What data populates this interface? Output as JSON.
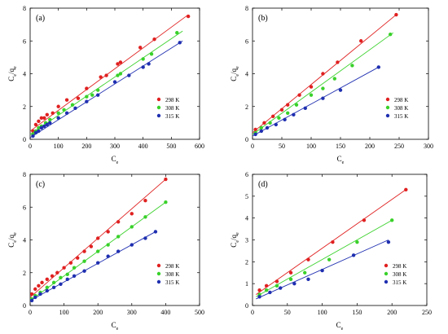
{
  "colors": {
    "298": "#e02020",
    "308": "#39d12a",
    "315": "#1f2fb0"
  },
  "chart_data": [
    {
      "type": "scatter",
      "panel_label": "(a)",
      "xlabel": "C",
      "xlabel_sub": "e",
      "ylabel": "C",
      "ylabel_sub": "e",
      "ylabel_mid": "/q",
      "ylabel_sub2": "e",
      "xlim": [
        0,
        600
      ],
      "ylim": [
        0,
        8
      ],
      "xticks": [
        0,
        100,
        200,
        300,
        400,
        500,
        600
      ],
      "yticks": [
        0,
        2,
        4,
        6,
        8
      ],
      "legend_position": "bottom-right",
      "series": [
        {
          "name": "298 K",
          "color_key": "298",
          "x": [
            10,
            20,
            30,
            40,
            50,
            60,
            80,
            100,
            130,
            170,
            200,
            250,
            270,
            310,
            320,
            390,
            440,
            560
          ],
          "y": [
            0.5,
            0.9,
            1.1,
            1.3,
            1.3,
            1.5,
            1.6,
            2.0,
            2.4,
            2.5,
            3.1,
            3.8,
            3.9,
            4.6,
            4.7,
            5.6,
            6.1,
            7.5
          ],
          "fit": [
            [
              0,
              0.5
            ],
            [
              560,
              7.6
            ]
          ]
        },
        {
          "name": "308 K",
          "color_key": "308",
          "x": [
            10,
            20,
            30,
            40,
            55,
            70,
            100,
            120,
            150,
            200,
            220,
            240,
            310,
            320,
            400,
            430,
            520
          ],
          "y": [
            0.3,
            0.5,
            0.7,
            0.8,
            1.0,
            1.2,
            1.6,
            1.8,
            2.1,
            2.6,
            2.7,
            3.0,
            3.9,
            4.0,
            4.9,
            5.2,
            6.5
          ],
          "fit": [
            [
              0,
              0.3
            ],
            [
              540,
              6.6
            ]
          ]
        },
        {
          "name": "315 K",
          "color_key": "315",
          "x": [
            10,
            20,
            30,
            40,
            50,
            60,
            70,
            100,
            130,
            160,
            200,
            240,
            300,
            350,
            400,
            420,
            530
          ],
          "y": [
            0.2,
            0.4,
            0.5,
            0.7,
            0.8,
            0.9,
            1.0,
            1.3,
            1.6,
            1.9,
            2.3,
            2.7,
            3.5,
            3.9,
            4.4,
            4.6,
            5.9
          ],
          "fit": [
            [
              0,
              0.1
            ],
            [
              540,
              6.0
            ]
          ]
        }
      ]
    },
    {
      "type": "scatter",
      "panel_label": "(b)",
      "xlabel": "C",
      "xlabel_sub": "e",
      "ylabel": "C",
      "ylabel_sub": "e",
      "ylabel_mid": "/q",
      "ylabel_sub2": "e",
      "xlim": [
        0,
        300
      ],
      "ylim": [
        0,
        8
      ],
      "xticks": [
        0,
        50,
        100,
        150,
        200,
        250,
        300
      ],
      "yticks": [
        0,
        2,
        4,
        6,
        8
      ],
      "legend_position": "bottom-right",
      "series": [
        {
          "name": "298 K",
          "color_key": "298",
          "x": [
            5,
            20,
            35,
            50,
            60,
            80,
            100,
            120,
            145,
            185,
            245
          ],
          "y": [
            0.6,
            1.0,
            1.4,
            1.8,
            2.1,
            2.7,
            3.2,
            4.0,
            4.7,
            6.0,
            7.6
          ],
          "fit": [
            [
              0,
              0.4
            ],
            [
              245,
              7.6
            ]
          ]
        },
        {
          "name": "308 K",
          "color_key": "308",
          "x": [
            5,
            15,
            30,
            45,
            60,
            75,
            100,
            120,
            140,
            170,
            235
          ],
          "y": [
            0.4,
            0.7,
            1.0,
            1.3,
            1.6,
            2.1,
            2.7,
            3.1,
            3.7,
            4.5,
            6.4
          ],
          "fit": [
            [
              0,
              0.3
            ],
            [
              240,
              6.5
            ]
          ]
        },
        {
          "name": "315 K",
          "color_key": "315",
          "x": [
            5,
            15,
            25,
            40,
            55,
            70,
            90,
            120,
            150,
            215
          ],
          "y": [
            0.3,
            0.5,
            0.7,
            0.9,
            1.2,
            1.5,
            1.9,
            2.5,
            3.0,
            4.4
          ],
          "fit": [
            [
              0,
              0.2
            ],
            [
              215,
              4.4
            ]
          ]
        }
      ]
    },
    {
      "type": "scatter",
      "panel_label": "(c)",
      "xlabel": "C",
      "xlabel_sub": "e",
      "ylabel": "C",
      "ylabel_sub": "e",
      "ylabel_mid": "/q",
      "ylabel_sub2": "e",
      "xlim": [
        0,
        500
      ],
      "ylim": [
        0,
        8
      ],
      "xticks": [
        0,
        100,
        200,
        300,
        400,
        500
      ],
      "yticks": [
        0,
        2,
        4,
        6,
        8
      ],
      "legend_position": "bottom-right",
      "series": [
        {
          "name": "298 K",
          "color_key": "298",
          "x": [
            5,
            15,
            25,
            35,
            50,
            65,
            80,
            100,
            120,
            140,
            160,
            180,
            200,
            230,
            260,
            300,
            340,
            400
          ],
          "y": [
            0.7,
            1.0,
            1.2,
            1.4,
            1.6,
            1.8,
            2.0,
            2.3,
            2.6,
            2.9,
            3.3,
            3.6,
            4.1,
            4.5,
            5.1,
            5.6,
            6.4,
            7.7
          ],
          "fit": [
            [
              0,
              0.5
            ],
            [
              400,
              7.7
            ]
          ]
        },
        {
          "name": "308 K",
          "color_key": "308",
          "x": [
            5,
            15,
            30,
            50,
            70,
            90,
            110,
            130,
            160,
            200,
            230,
            260,
            300,
            340,
            400
          ],
          "y": [
            0.4,
            0.6,
            0.8,
            1.1,
            1.4,
            1.7,
            1.9,
            2.3,
            2.7,
            3.3,
            3.7,
            4.2,
            4.8,
            5.4,
            6.3
          ],
          "fit": [
            [
              0,
              0.3
            ],
            [
              400,
              6.3
            ]
          ]
        },
        {
          "name": "315 K",
          "color_key": "315",
          "x": [
            5,
            15,
            30,
            50,
            70,
            90,
            110,
            130,
            160,
            200,
            230,
            260,
            300,
            340,
            370
          ],
          "y": [
            0.3,
            0.5,
            0.7,
            0.9,
            1.1,
            1.3,
            1.6,
            1.8,
            2.1,
            2.6,
            3.0,
            3.3,
            3.7,
            4.1,
            4.5
          ],
          "fit": [
            [
              0,
              0.3
            ],
            [
              370,
              4.5
            ]
          ]
        }
      ]
    },
    {
      "type": "scatter",
      "panel_label": "(d)",
      "xlabel": "C",
      "xlabel_sub": "e",
      "ylabel": "C",
      "ylabel_sub": "e",
      "ylabel_mid": "/q",
      "ylabel_sub2": "e",
      "xlim": [
        0,
        250
      ],
      "ylim": [
        0,
        6
      ],
      "xticks": [
        0,
        50,
        100,
        150,
        200,
        250
      ],
      "yticks": [
        0,
        1,
        2,
        3,
        4,
        5,
        6
      ],
      "legend_position": "bottom-right",
      "series": [
        {
          "name": "298 K",
          "color_key": "298",
          "x": [
            10,
            20,
            35,
            55,
            80,
            115,
            160,
            220
          ],
          "y": [
            0.7,
            0.9,
            1.1,
            1.5,
            2.1,
            2.9,
            3.9,
            5.3
          ],
          "fit": [
            [
              5,
              0.5
            ],
            [
              220,
              5.3
            ]
          ]
        },
        {
          "name": "308 K",
          "color_key": "308",
          "x": [
            10,
            20,
            35,
            55,
            75,
            110,
            150,
            200
          ],
          "y": [
            0.5,
            0.7,
            0.9,
            1.2,
            1.5,
            2.1,
            2.9,
            3.9
          ],
          "fit": [
            [
              5,
              0.4
            ],
            [
              200,
              3.9
            ]
          ]
        },
        {
          "name": "315 K",
          "color_key": "315",
          "x": [
            10,
            25,
            40,
            60,
            80,
            100,
            145,
            195
          ],
          "y": [
            0.4,
            0.6,
            0.8,
            1.0,
            1.2,
            1.6,
            2.3,
            2.9
          ],
          "fit": [
            [
              5,
              0.3
            ],
            [
              195,
              3.0
            ]
          ]
        }
      ]
    }
  ]
}
